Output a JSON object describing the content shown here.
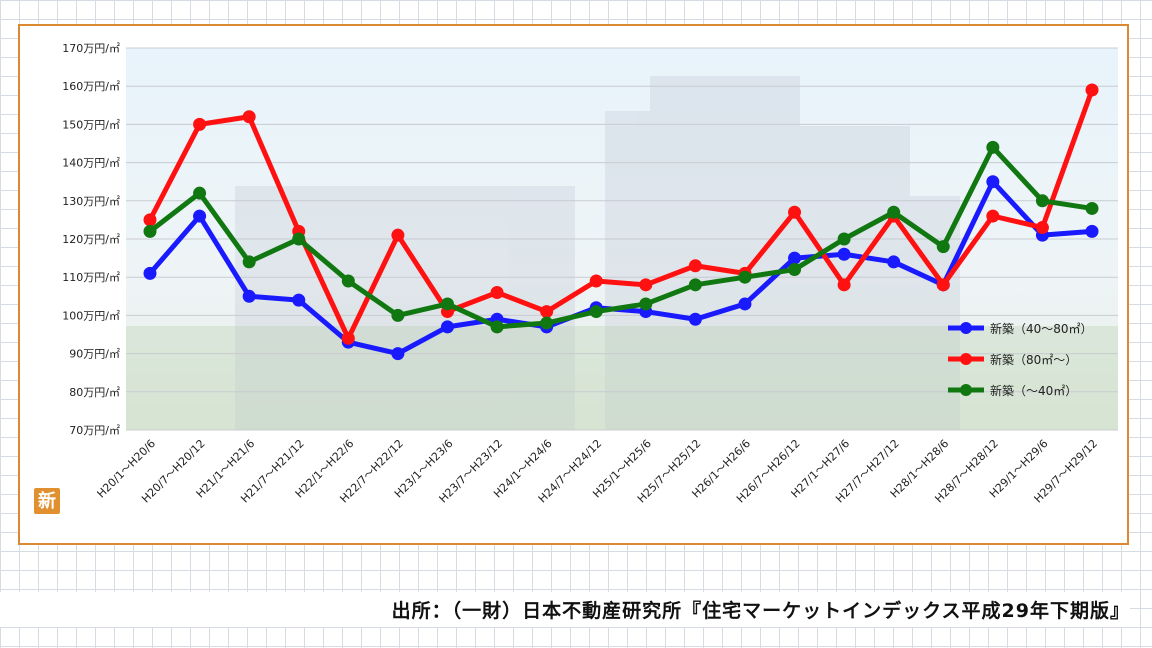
{
  "logo_text": "新",
  "source": "出所：（一財）日本不動産研究所『住宅マーケットインデックス平成29年下期版』",
  "colors": {
    "frame": "#d98a32",
    "logo": "#e0902e"
  },
  "chart_data": {
    "type": "line",
    "title": "",
    "xlabel": "",
    "ylabel": "",
    "ylim": [
      70,
      170
    ],
    "y_ticks": [
      "70万円/㎡",
      "80万円/㎡",
      "90万円/㎡",
      "100万円/㎡",
      "110万円/㎡",
      "120万円/㎡",
      "130万円/㎡",
      "140万円/㎡",
      "150万円/㎡",
      "160万円/㎡",
      "170万円/㎡"
    ],
    "y_tick_values": [
      70,
      80,
      90,
      100,
      110,
      120,
      130,
      140,
      150,
      160,
      170
    ],
    "grid": true,
    "legend_position": "bottom-right",
    "categories": [
      "H20/1～H20/6",
      "H20/7～H20/12",
      "H21/1～H21/6",
      "H21/7～H21/12",
      "H22/1～H22/6",
      "H22/7～H22/12",
      "H23/1～H23/6",
      "H23/7～H23/12",
      "H24/1～H24/6",
      "H24/7～H24/12",
      "H25/1～H25/6",
      "H25/7～H25/12",
      "H26/1～H26/6",
      "H26/7～H26/12",
      "H27/1～H27/6",
      "H27/7～H27/12",
      "H28/1～H28/6",
      "H28/7～H28/12",
      "H29/1～H29/6",
      "H29/7～H29/12"
    ],
    "series": [
      {
        "name": "新築（40～80㎡）",
        "color": "#1a1aff",
        "values": [
          111,
          126,
          105,
          104,
          93,
          90,
          97,
          99,
          97,
          102,
          101,
          99,
          103,
          115,
          116,
          114,
          108,
          135,
          121,
          122
        ]
      },
      {
        "name": "新築（80㎡～）",
        "color": "#ff1111",
        "values": [
          125,
          150,
          152,
          122,
          94,
          121,
          101,
          106,
          101,
          109,
          108,
          113,
          111,
          127,
          108,
          126,
          108,
          126,
          123,
          159
        ]
      },
      {
        "name": "新築（～40㎡）",
        "color": "#117711",
        "values": [
          122,
          132,
          114,
          120,
          109,
          100,
          103,
          97,
          98,
          101,
          103,
          108,
          110,
          112,
          120,
          127,
          118,
          144,
          130,
          128
        ]
      }
    ]
  }
}
